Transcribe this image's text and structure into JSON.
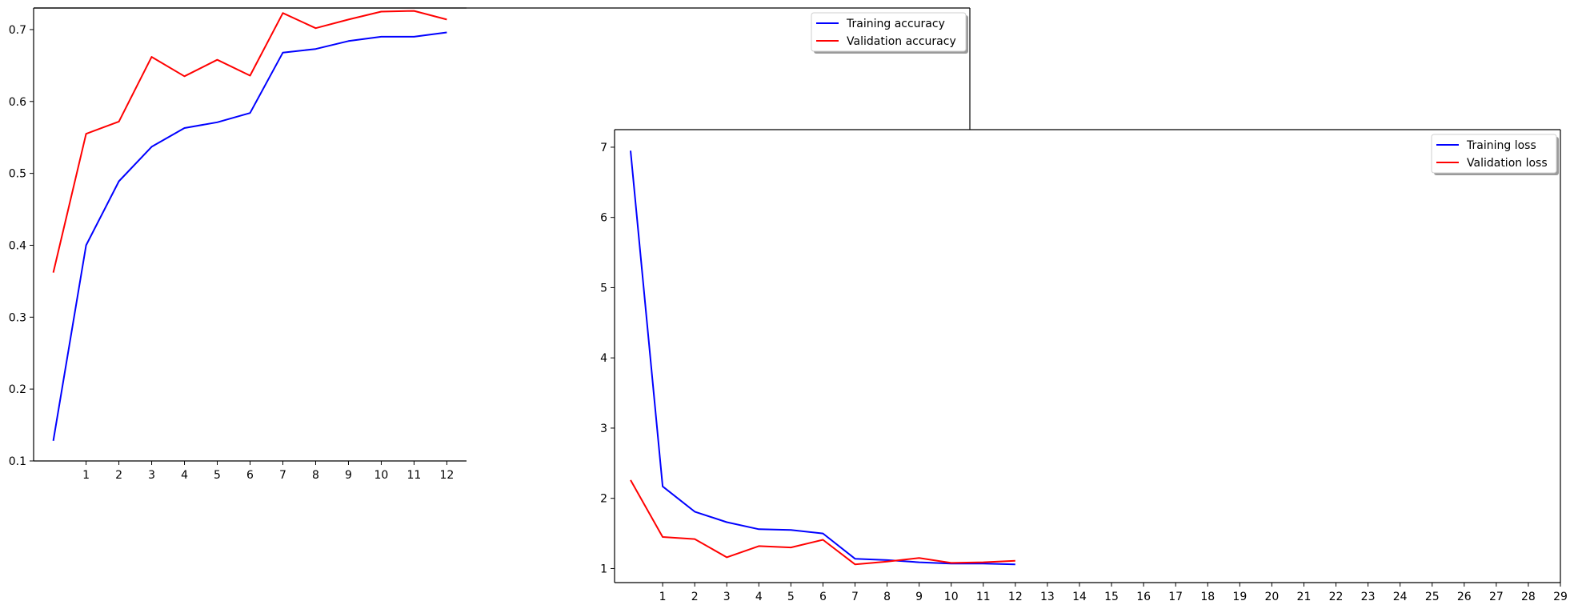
{
  "chart_data": [
    {
      "type": "line",
      "x": [
        0,
        1,
        2,
        3,
        4,
        5,
        6,
        7,
        8,
        9,
        10,
        11,
        12
      ],
      "x_ticks": [
        "1",
        "2",
        "3",
        "4",
        "5",
        "6",
        "7",
        "8",
        "9",
        "10",
        "11",
        "12"
      ],
      "y_ticks": [
        "0.1",
        "0.2",
        "0.3",
        "0.4",
        "0.5",
        "0.6",
        "0.7"
      ],
      "xlim": [
        -0.6,
        12.6
      ],
      "ylim": [
        0.1,
        0.73
      ],
      "title": "",
      "xlabel": "",
      "ylabel": "",
      "legend_position": "top-right",
      "series": [
        {
          "name": "Training accuracy",
          "color": "#0000ff",
          "values": [
            0.128,
            0.4,
            0.489,
            0.537,
            0.563,
            0.571,
            0.584,
            0.668,
            0.673,
            0.684,
            0.69,
            0.69,
            0.696
          ]
        },
        {
          "name": "Validation accuracy",
          "color": "#ff0000",
          "values": [
            0.362,
            0.555,
            0.572,
            0.662,
            0.635,
            0.658,
            0.636,
            0.723,
            0.702,
            0.714,
            0.725,
            0.726,
            0.714
          ]
        }
      ]
    },
    {
      "type": "line",
      "x": [
        0,
        1,
        2,
        3,
        4,
        5,
        6,
        7,
        8,
        9,
        10,
        11,
        12
      ],
      "x_ticks": [
        "1",
        "2",
        "3",
        "4",
        "5",
        "6",
        "7",
        "8",
        "9",
        "10",
        "11",
        "12",
        "13",
        "14",
        "15",
        "16",
        "17",
        "18",
        "19",
        "20",
        "21",
        "22",
        "23",
        "24",
        "25",
        "26",
        "27",
        "28",
        "29"
      ],
      "y_ticks": [
        "1",
        "2",
        "3",
        "4",
        "5",
        "6",
        "7"
      ],
      "xlim": [
        -0.5,
        29
      ],
      "ylim": [
        0.8,
        7.25
      ],
      "title": "",
      "xlabel": "",
      "ylabel": "",
      "legend_position": "top-right",
      "series": [
        {
          "name": "Training loss",
          "color": "#0000ff",
          "values": [
            6.95,
            2.17,
            1.81,
            1.66,
            1.56,
            1.55,
            1.5,
            1.14,
            1.12,
            1.09,
            1.07,
            1.07,
            1.06
          ]
        },
        {
          "name": "Validation loss",
          "color": "#ff0000",
          "values": [
            2.26,
            1.45,
            1.42,
            1.16,
            1.32,
            1.3,
            1.41,
            1.06,
            1.1,
            1.15,
            1.08,
            1.09,
            1.11
          ]
        }
      ]
    }
  ]
}
